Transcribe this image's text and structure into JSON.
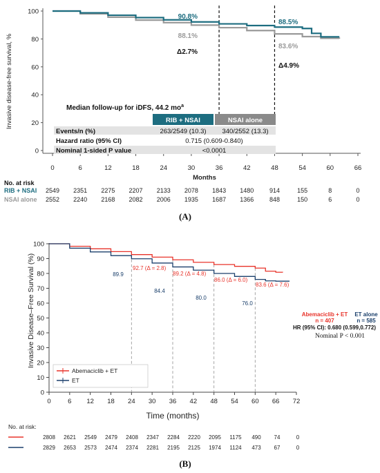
{
  "chart_data": [
    {
      "type": "line",
      "panel_label": "(A)",
      "ylabel": "Invasive disease-free survival, %",
      "xlabel": "Months",
      "xlim": [
        0,
        66
      ],
      "ylim": [
        0,
        100
      ],
      "x_ticks": [
        "0",
        "6",
        "12",
        "18",
        "24",
        "30",
        "36",
        "42",
        "48",
        "54",
        "60",
        "66"
      ],
      "y_ticks": [
        "0",
        "20",
        "40",
        "60",
        "80",
        "100"
      ],
      "series": [
        {
          "name": "RIB + NSAI",
          "color": "#1d6d80",
          "x": [
            0,
            6,
            12,
            18,
            24,
            30,
            36,
            42,
            48,
            54,
            56,
            58,
            62
          ],
          "y": [
            100,
            98.7,
            97.0,
            95.3,
            93.7,
            92.2,
            90.8,
            89.6,
            88.5,
            87.5,
            84.0,
            81.5,
            81.5
          ]
        },
        {
          "name": "NSAI alone",
          "color": "#9a9a9a",
          "x": [
            0,
            6,
            12,
            18,
            24,
            30,
            36,
            42,
            48,
            54,
            58,
            62
          ],
          "y": [
            100,
            98.0,
            95.6,
            93.5,
            91.7,
            89.9,
            88.1,
            86.0,
            83.6,
            81.7,
            80.5,
            80.2
          ]
        }
      ],
      "annotations": {
        "rib_36": "90.8%",
        "nsai_36": "88.1%",
        "delta_36": "Δ2.7%",
        "rib_48": "88.5%",
        "nsai_48": "83.6%",
        "delta_48": "Δ4.9%"
      },
      "table": {
        "title": "Median follow-up for iDFS, 44.2 mo",
        "title_sup": "a",
        "col1": "RIB + NSAI",
        "col2": "NSAI alone",
        "rows": [
          {
            "label": "Events/n (%)",
            "c1": "263/2549 (10.3)",
            "c2": "340/2552 (13.3)"
          },
          {
            "label": "Hazard ratio (95% CI)",
            "merged": "0.715 (0.609-0.840)"
          },
          {
            "label": "Nominal 1-sided P value",
            "merged": "<0.0001"
          }
        ]
      },
      "at_risk": {
        "title": "No. at risk",
        "rows": [
          {
            "name": "RIB + NSAI",
            "values": [
              "2549",
              "2351",
              "2275",
              "2207",
              "2133",
              "2078",
              "1843",
              "1480",
              "914",
              "155",
              "8",
              "0"
            ]
          },
          {
            "name": "NSAI alone",
            "values": [
              "2552",
              "2240",
              "2168",
              "2082",
              "2006",
              "1935",
              "1687",
              "1366",
              "848",
              "150",
              "6",
              "0"
            ]
          }
        ]
      }
    },
    {
      "type": "line",
      "panel_label": "(B)",
      "ylabel": "Invasive Disease–Free Survival (%)",
      "xlabel": "Time (months)",
      "xlim": [
        0,
        72
      ],
      "ylim": [
        0,
        100
      ],
      "x_ticks": [
        "0",
        "6",
        "12",
        "18",
        "24",
        "30",
        "36",
        "42",
        "48",
        "54",
        "60",
        "66",
        "72"
      ],
      "y_ticks": [
        "0",
        "10",
        "20",
        "30",
        "40",
        "50",
        "60",
        "70",
        "80",
        "90",
        "100"
      ],
      "series": [
        {
          "name": "Abemaciclib + ET",
          "color": "#e8332a",
          "x": [
            0,
            6,
            12,
            18,
            24,
            30,
            36,
            42,
            48,
            54,
            60,
            63,
            66,
            68
          ],
          "y": [
            100,
            98.3,
            96.6,
            94.7,
            92.7,
            91.0,
            89.2,
            87.5,
            86.0,
            84.8,
            83.6,
            81.5,
            80.8,
            80.7
          ]
        },
        {
          "name": "ET",
          "color": "#1a3f6b",
          "x": [
            0,
            6,
            12,
            18,
            24,
            30,
            36,
            42,
            48,
            54,
            60,
            63,
            66,
            70
          ],
          "y": [
            100,
            97.0,
            94.5,
            92.0,
            89.9,
            87.0,
            84.4,
            82.2,
            80.0,
            78.0,
            76.0,
            75.0,
            74.8,
            74.8
          ]
        }
      ],
      "annotations": {
        "red_24": "92.7 (Δ = 2.8)",
        "red_36": "89.2 (Δ = 4.8)",
        "red_48": "86.0 (Δ = 6.0)",
        "red_60": "83.6 (Δ = 7.6)",
        "blue_24": "89.9",
        "blue_36": "84.4",
        "blue_48": "80.0",
        "blue_60": "76.0"
      },
      "stats": {
        "arm1": "Abemaciclib + ET",
        "arm2": "ET alone",
        "n1": "n = 407",
        "n2": "n = 585",
        "hr": "HR (95% CI): 0.680 (0.599,0.772)",
        "p": "Nominal P < 0.001"
      },
      "at_risk": {
        "title": "No. at risk:",
        "rows": [
          {
            "name": "Abemaciclib + ET",
            "values": [
              "2808",
              "2621",
              "2549",
              "2479",
              "2408",
              "2347",
              "2284",
              "2220",
              "2095",
              "1175",
              "490",
              "74",
              "0"
            ]
          },
          {
            "name": "ET",
            "values": [
              "2829",
              "2653",
              "2573",
              "2474",
              "2374",
              "2281",
              "2195",
              "2125",
              "1974",
              "1124",
              "473",
              "67",
              "0"
            ]
          }
        ]
      }
    }
  ]
}
